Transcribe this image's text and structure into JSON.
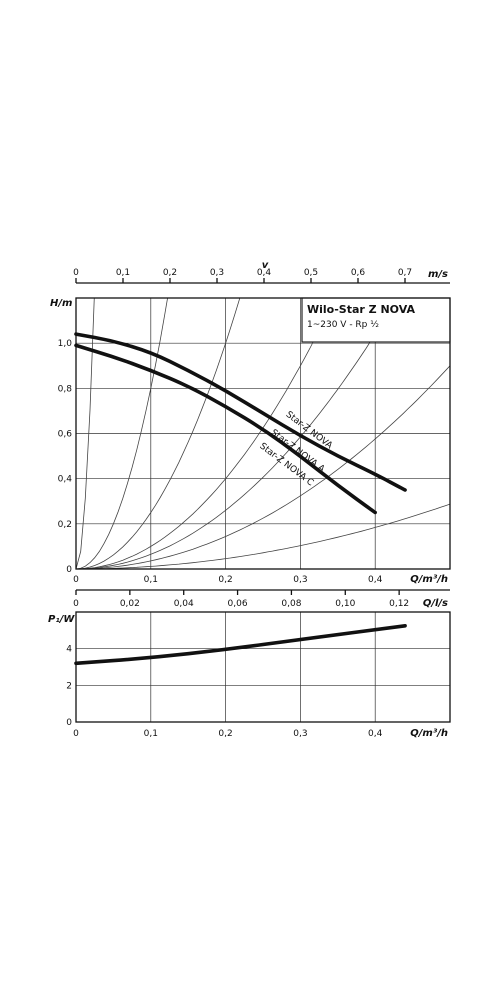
{
  "chart_data": [
    {
      "type": "line",
      "title": "Wilo-Star Z NOVA",
      "subtitle": "1~230 V - Rp ½",
      "xlabel": "Q/m³/h",
      "ylabel": "H/m",
      "xlim": [
        0,
        0.5
      ],
      "ylim": [
        0,
        1.2
      ],
      "x_ticks": [
        "0",
        "0,1",
        "0,2",
        "0,3",
        "0,4"
      ],
      "y_ticks": [
        "0",
        "0,2",
        "0,4",
        "0,6",
        "0,8",
        "1,0"
      ],
      "grid": true,
      "top_axis": {
        "label": "m/s",
        "title": "v",
        "ticks": [
          "0",
          "0,1",
          "0,2",
          "0,3",
          "0,4",
          "0,5",
          "0,6",
          "0,7"
        ]
      },
      "bottom_axis2": {
        "label": "Q/l/s",
        "ticks": [
          "0",
          "0,02",
          "0,04",
          "0,06",
          "0,08",
          "0,10",
          "0,12"
        ]
      },
      "series": [
        {
          "name": "Star-Z NOVA",
          "label_x": 0.28,
          "label_y": 0.68,
          "x": [
            0,
            0.05,
            0.1,
            0.15,
            0.2,
            0.25,
            0.3,
            0.35,
            0.4,
            0.44
          ],
          "y": [
            1.04,
            1.01,
            0.96,
            0.88,
            0.79,
            0.69,
            0.59,
            0.5,
            0.42,
            0.35
          ]
        },
        {
          "name": "Star-Z NOVA A",
          "label_x": 0.26,
          "label_y": 0.6,
          "x": [
            0,
            0.05,
            0.1,
            0.15,
            0.2,
            0.25,
            0.3,
            0.35,
            0.4
          ],
          "y": [
            0.99,
            0.94,
            0.88,
            0.81,
            0.72,
            0.62,
            0.5,
            0.37,
            0.25
          ]
        },
        {
          "name": "Star-Z NOVA C",
          "label_x": 0.245,
          "label_y": 0.54,
          "labelOnly": true
        }
      ],
      "system_curves_k": [
        2000,
        80,
        25,
        10,
        6.5,
        3.6,
        1.15
      ]
    },
    {
      "type": "line",
      "xlabel": "Q/m³/h",
      "ylabel": "P₁/W",
      "xlim": [
        0,
        0.5
      ],
      "ylim": [
        0,
        6
      ],
      "x_ticks": [
        "0",
        "0,1",
        "0,2",
        "0,3",
        "0,4"
      ],
      "y_ticks": [
        "0",
        "2",
        "4"
      ],
      "grid": true,
      "series": [
        {
          "x": [
            0,
            0.1,
            0.2,
            0.3,
            0.44
          ],
          "y": [
            3.2,
            3.5,
            3.95,
            4.5,
            5.25
          ]
        }
      ]
    }
  ]
}
